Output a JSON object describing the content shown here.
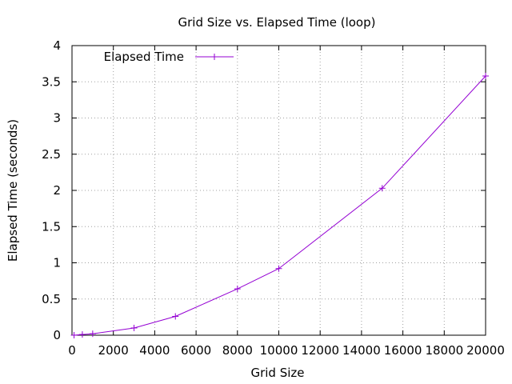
{
  "chart_data": {
    "type": "line",
    "title": "Grid Size vs. Elapsed Time (loop)",
    "xlabel": "Grid Size",
    "ylabel": "Elapsed Time (seconds)",
    "xlim": [
      0,
      20000
    ],
    "ylim": [
      0,
      4
    ],
    "x_ticks": [
      "0",
      "2000",
      "4000",
      "6000",
      "8000",
      "10000",
      "12000",
      "14000",
      "16000",
      "18000",
      "20000"
    ],
    "y_ticks": [
      "0",
      "0.5",
      "1",
      "1.5",
      "2",
      "2.5",
      "3",
      "3.5",
      "4"
    ],
    "x_tick_values": [
      0,
      2000,
      4000,
      6000,
      8000,
      10000,
      12000,
      14000,
      16000,
      18000,
      20000
    ],
    "y_tick_values": [
      0,
      0.5,
      1,
      1.5,
      2,
      2.5,
      3,
      3.5,
      4
    ],
    "grid": true,
    "legend_position": "top-left",
    "series": [
      {
        "name": "Elapsed Time",
        "color": "#9400d3",
        "marker": "plus",
        "x": [
          100,
          500,
          1000,
          3000,
          5000,
          8000,
          10000,
          15000,
          20000
        ],
        "y": [
          0.0,
          0.01,
          0.02,
          0.1,
          0.26,
          0.64,
          0.92,
          2.03,
          3.58
        ]
      }
    ]
  }
}
